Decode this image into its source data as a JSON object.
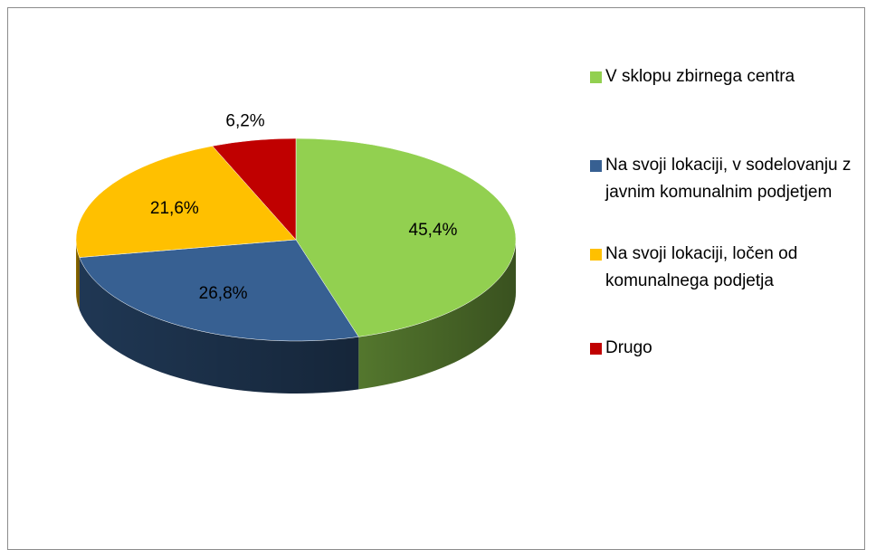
{
  "chart_data": {
    "type": "pie",
    "categories": [
      "V sklopu zbirnega centra",
      "Na svoji lokaciji, v sodelovanju z javnim komunalnim podjetjem",
      "Na svoji lokaciji, ločen od komunalnega podjetja",
      "Drugo"
    ],
    "values": [
      45.4,
      26.8,
      21.6,
      6.2
    ],
    "value_labels": [
      "45,4%",
      "26,8%",
      "21,6%",
      "6,2%"
    ],
    "colors": [
      "#92d050",
      "#376092",
      "#ffc000",
      "#c00000"
    ],
    "legend": "right"
  }
}
